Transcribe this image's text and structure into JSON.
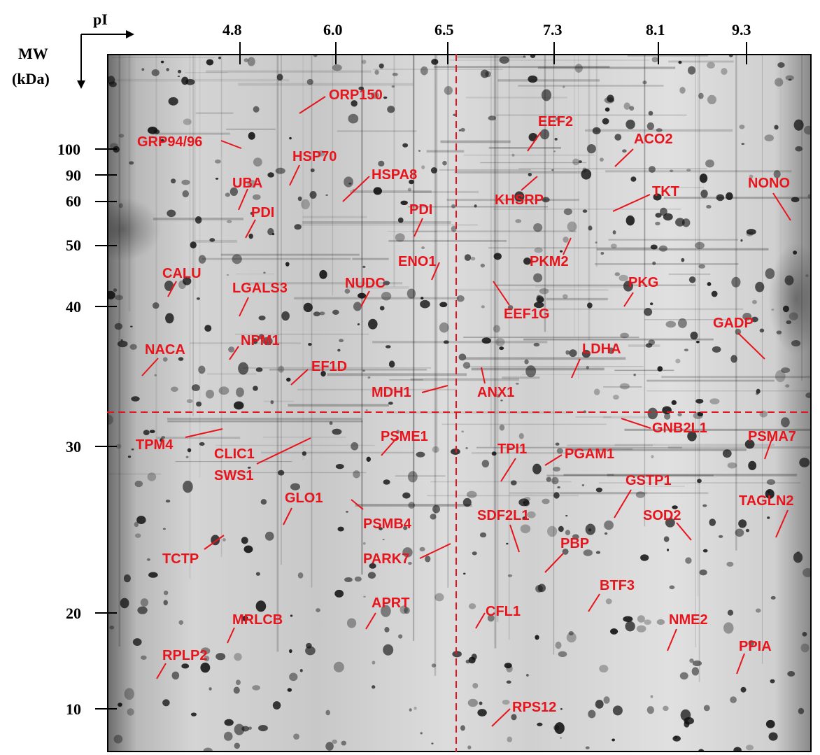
{
  "axes": {
    "pi_label": "pI",
    "mw_label_line1": "MW",
    "mw_label_line2": "(kDa)",
    "pi_ticks": [
      "4.8",
      "6.0",
      "6.5",
      "7.3",
      "8.1",
      "9.3"
    ],
    "mw_ticks": [
      "100",
      "90",
      "60",
      "50",
      "40",
      "30",
      "20",
      "10"
    ]
  },
  "proteins": [
    "ORP150",
    "GRP94/96",
    "HSP70",
    "UBA",
    "HSPA8",
    "PDI",
    "PDI",
    "CALU",
    "LGALS3",
    "NUDC",
    "ENO1",
    "NACA",
    "NPM1",
    "EF1D",
    "MDH1",
    "EEF2",
    "ACO2",
    "KHSRP",
    "TKT",
    "NONO",
    "PKM2",
    "PKG",
    "EEF1G",
    "GADP",
    "LDHA",
    "ANX1",
    "TPM4",
    "CLIC1",
    "SWS1",
    "PSME1",
    "GLO1",
    "PSMB4",
    "TCTP",
    "PARK7",
    "APRT",
    "MRLCB",
    "RPLP2",
    "GNB2L1",
    "PSMA7",
    "TPI1",
    "PGAM1",
    "GSTP1",
    "TAGLN2",
    "SDF2L1",
    "SOD2",
    "PBP",
    "BTF3",
    "CFL1",
    "NME2",
    "PPIA",
    "RPS12"
  ],
  "colors": {
    "label": "#e8141c",
    "guide": "#e8141c",
    "axis": "#000000"
  }
}
